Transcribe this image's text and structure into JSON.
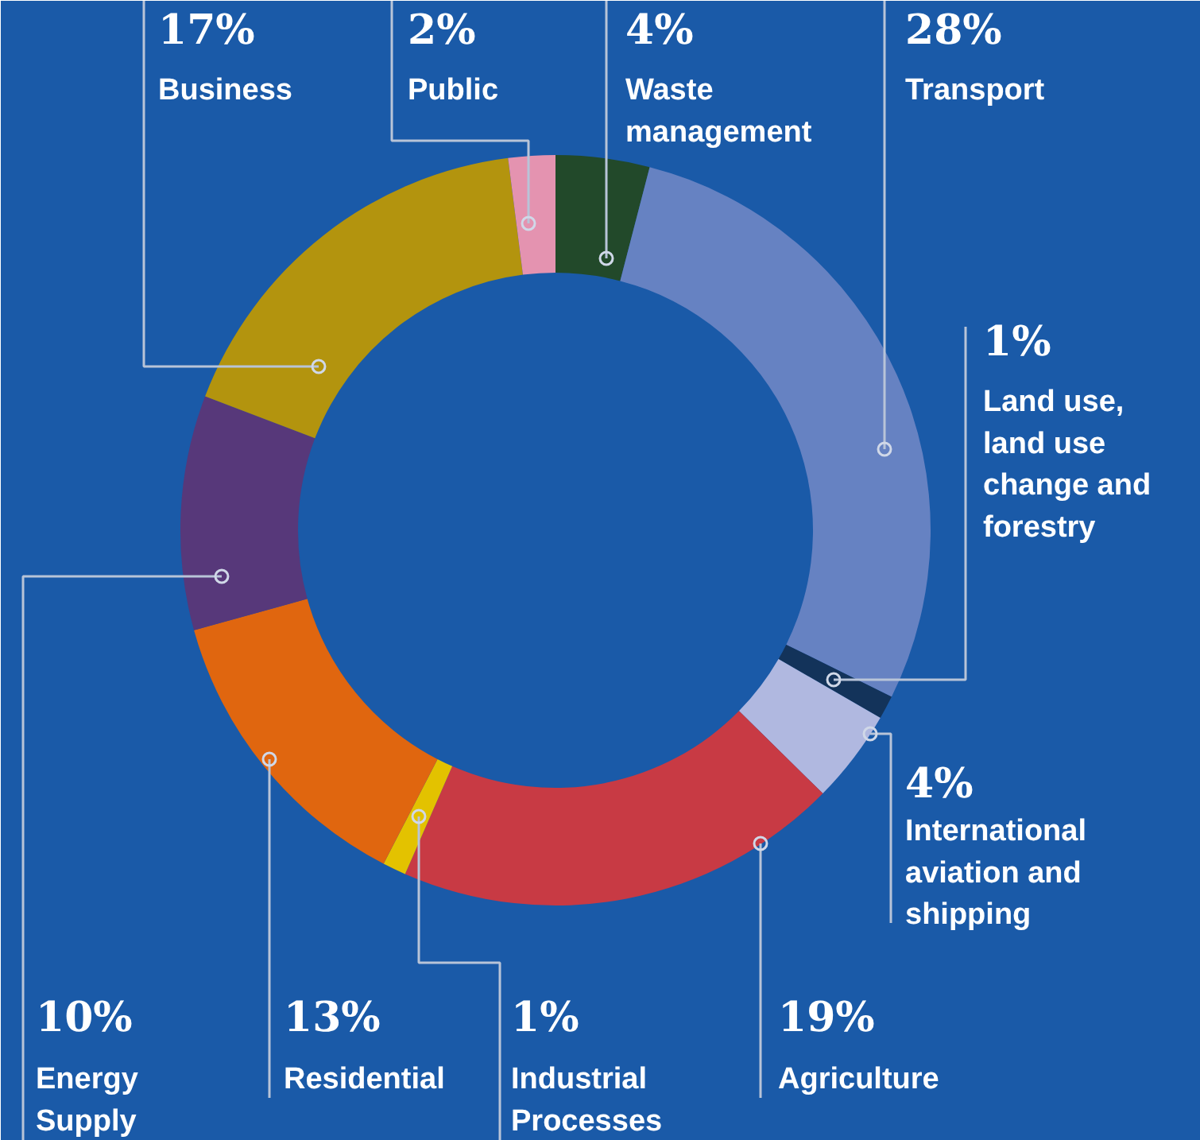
{
  "chart_data": {
    "type": "donut",
    "categories": [
      "Waste management",
      "Transport",
      "Land use, land use change and forestry",
      "International aviation and shipping",
      "Agriculture",
      "Industrial Processes",
      "Residential",
      "Energy Supply",
      "Business",
      "Public"
    ],
    "values": [
      4,
      28,
      1,
      4,
      19,
      1,
      13,
      10,
      17,
      2
    ],
    "value_labels": [
      "4%",
      "28%",
      "1%",
      "4%",
      "19%",
      "1%",
      "13%",
      "10%",
      "17%",
      "2%"
    ],
    "colors": [
      "#22492a",
      "#6682c2",
      "#13335a",
      "#b0b8e0",
      "#c83a44",
      "#e3c200",
      "#e0660f",
      "#57387a",
      "#b3940e",
      "#e493b0"
    ]
  }
}
